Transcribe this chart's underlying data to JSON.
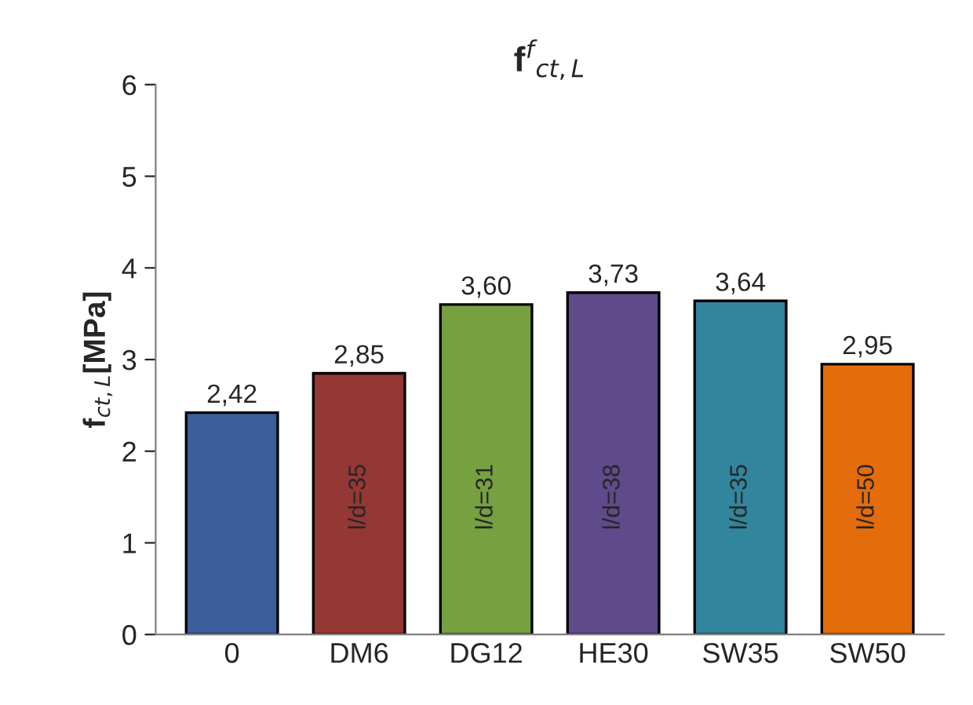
{
  "chart_data": {
    "type": "bar",
    "title": "f$^{f}$$_{ct,L}$",
    "ylabel": "f$_{ct,L}$[MPa]",
    "categories": [
      "0",
      "DM6",
      "DG12",
      "HE30",
      "SW35",
      "SW50"
    ],
    "values": [
      2.42,
      2.85,
      3.6,
      3.73,
      3.64,
      2.95
    ],
    "value_labels": [
      "2,42",
      "2,85",
      "3,60",
      "3,73",
      "3,64",
      "2,95"
    ],
    "colors": [
      "#3a5f9a",
      "#953735",
      "#77a040",
      "#5f4a8b",
      "#31859c",
      "#e46c0a"
    ],
    "ylim": [
      0,
      6
    ],
    "yticks": [
      0,
      1,
      2,
      3,
      4,
      5,
      6
    ],
    "grid": false,
    "legend": false,
    "annotations": [
      "l/d=35",
      "l/d=31",
      "l/d=38",
      "l/d=35",
      "l/d=50"
    ]
  }
}
